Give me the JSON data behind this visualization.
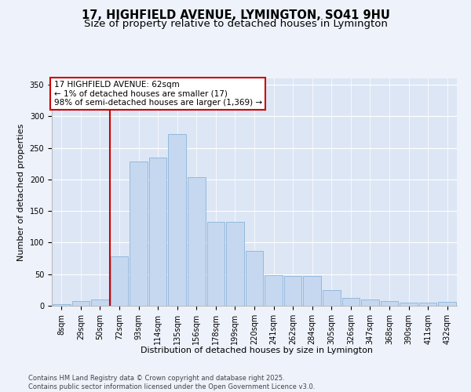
{
  "title_line1": "17, HIGHFIELD AVENUE, LYMINGTON, SO41 9HU",
  "title_line2": "Size of property relative to detached houses in Lymington",
  "xlabel": "Distribution of detached houses by size in Lymington",
  "ylabel": "Number of detached properties",
  "categories": [
    "8sqm",
    "29sqm",
    "50sqm",
    "72sqm",
    "93sqm",
    "114sqm",
    "135sqm",
    "156sqm",
    "178sqm",
    "199sqm",
    "220sqm",
    "241sqm",
    "262sqm",
    "284sqm",
    "305sqm",
    "326sqm",
    "347sqm",
    "368sqm",
    "390sqm",
    "411sqm",
    "432sqm"
  ],
  "values": [
    3,
    8,
    10,
    78,
    228,
    235,
    272,
    203,
    133,
    133,
    87,
    48,
    47,
    47,
    25,
    12,
    10,
    8,
    5,
    5,
    6
  ],
  "bar_color": "#c5d8f0",
  "bar_edge_color": "#8ab4d8",
  "vline_color": "#cc0000",
  "vline_x": 2.5,
  "annotation_text": "17 HIGHFIELD AVENUE: 62sqm\n← 1% of detached houses are smaller (17)\n98% of semi-detached houses are larger (1,369) →",
  "ylim": [
    0,
    360
  ],
  "yticks": [
    0,
    50,
    100,
    150,
    200,
    250,
    300,
    350
  ],
  "footnote": "Contains HM Land Registry data © Crown copyright and database right 2025.\nContains public sector information licensed under the Open Government Licence v3.0.",
  "background_color": "#eef2fb",
  "plot_background": "#dde6f5",
  "grid_color": "#ffffff",
  "title_fontsize": 10.5,
  "subtitle_fontsize": 9.5,
  "axis_label_fontsize": 8,
  "tick_fontsize": 7,
  "footnote_fontsize": 6,
  "annotation_fontsize": 7.5
}
